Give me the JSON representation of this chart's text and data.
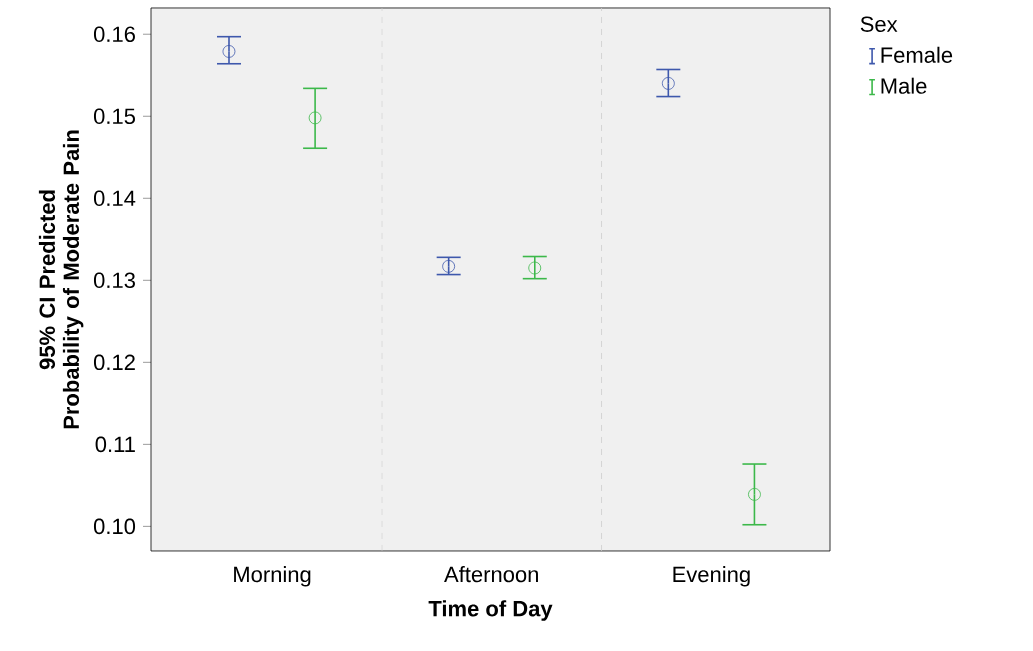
{
  "chart_data": {
    "type": "scatter",
    "xlabel": "Time of Day",
    "ylabel": "95% CI Predicted Probability of Moderate Pain",
    "legend_title": "Sex",
    "categories": [
      "Morning",
      "Afternoon",
      "Evening"
    ],
    "series": [
      {
        "name": "Female",
        "color": "#3e58ac",
        "values": [
          0.1579,
          0.1317,
          0.154
        ],
        "errors": [
          [
            0.1564,
            0.1597
          ],
          [
            0.1307,
            0.1328
          ],
          [
            0.1524,
            0.1557
          ]
        ]
      },
      {
        "name": "Male",
        "color": "#3cb84a",
        "values": [
          0.1498,
          0.1315,
          0.1039
        ],
        "errors": [
          [
            0.1461,
            0.1534
          ],
          [
            0.1302,
            0.1329
          ],
          [
            0.1002,
            0.1076
          ]
        ]
      }
    ],
    "ylim": [
      0.097,
      0.1632
    ],
    "yticks": [
      {
        "value": 0.1,
        "label": "0.10"
      },
      0.11,
      0.12,
      0.13,
      0.14,
      0.15,
      0.16
    ],
    "grid": "x",
    "legend": "top right",
    "marker": "circle"
  }
}
